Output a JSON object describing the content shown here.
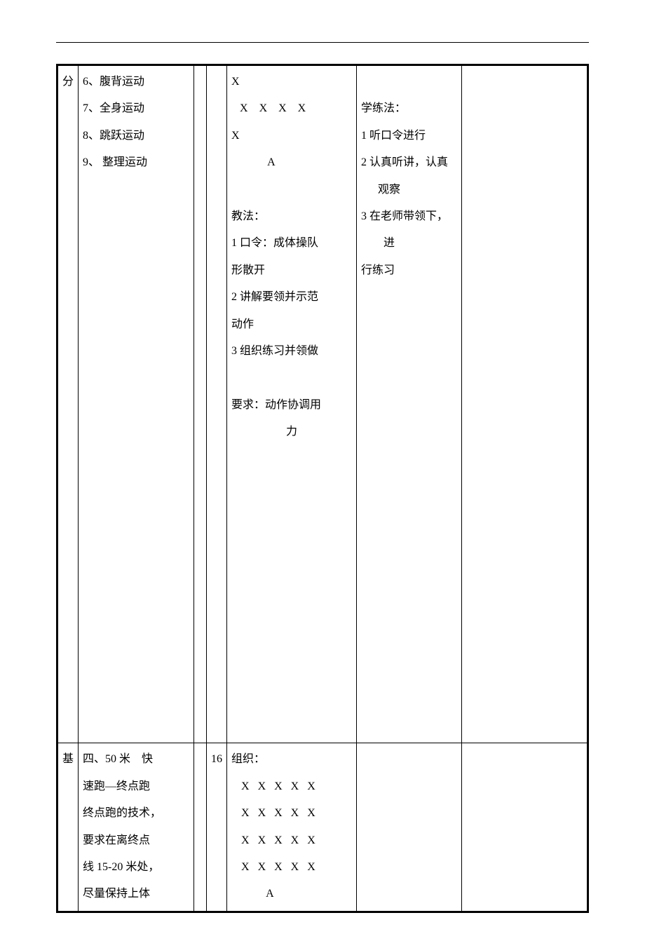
{
  "row1": {
    "phase": "分",
    "content": {
      "items": [
        "6、腹背运动",
        "7、全身运动",
        "8、跳跃运动",
        "9、 整理运动"
      ]
    },
    "teach": {
      "formation_top": [
        "X",
        "   X    X    X    X",
        "X",
        "             A"
      ],
      "teach_label": "教法：",
      "teach_items": [
        "1 口令：成体操队",
        "形散开",
        "2 讲解要领并示范",
        "动作",
        "3 组织练习并领做"
      ],
      "require_line1": "要求：动作协调用",
      "require_line2": "力"
    },
    "learn": {
      "title": "学练法：",
      "items": [
        "1 听口令进行",
        "",
        "2 认真听讲，认真",
        "      观察",
        "",
        "3 在老师带领下，",
        "        进",
        "行练习"
      ]
    }
  },
  "row2": {
    "phase": "基",
    "time": "16",
    "content": {
      "items": [
        "四、50 米    快",
        "速跑—终点跑",
        "终点跑的技术，",
        "要求在离终点",
        "线 15-20 米处，",
        "尽量保持上体"
      ]
    },
    "teach": {
      "org_label": "组织：",
      "formation": [
        "X   X   X   X   X",
        "X   X   X   X   X",
        "X   X   X   X   X",
        "X   X   X   X   X",
        "         A"
      ]
    }
  }
}
